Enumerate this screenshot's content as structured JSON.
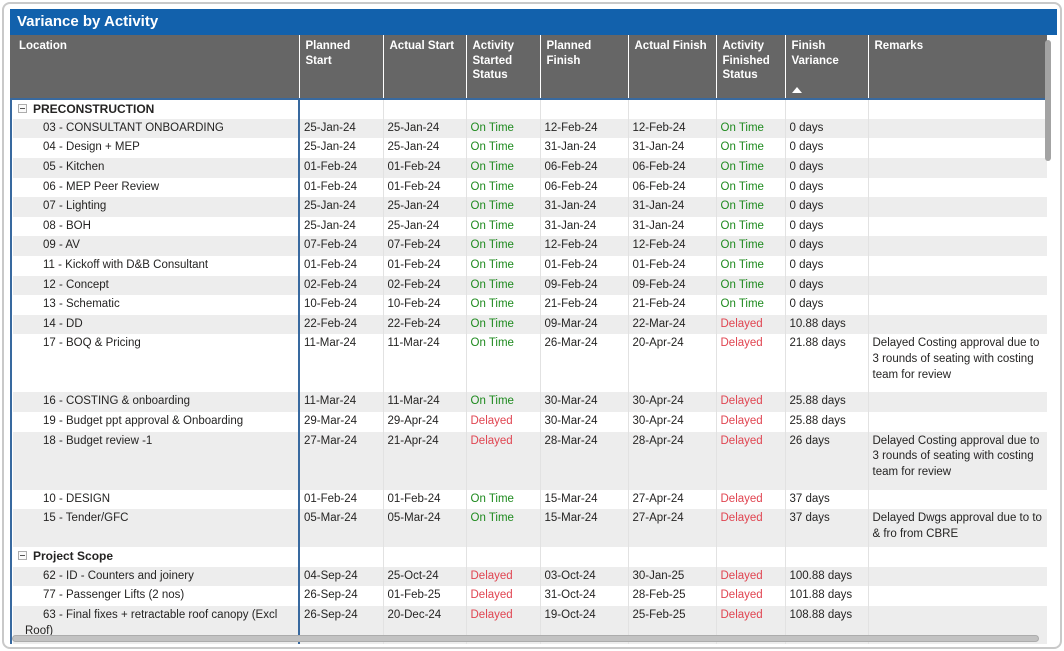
{
  "title": "Variance by Activity",
  "colors": {
    "title_bar": "#1261AC",
    "header_background": "#666666",
    "on_time_green": "#1E8A1E",
    "delayed_red": "#E04450",
    "frozen_divider_blue": "#38699F"
  },
  "table": {
    "columns": [
      {
        "key": "loc",
        "label": "Location"
      },
      {
        "key": "ps",
        "label": "Planned Start"
      },
      {
        "key": "as",
        "label": "Actual Start"
      },
      {
        "key": "ss",
        "label": "Activity Started Status"
      },
      {
        "key": "pf",
        "label": "Planned Finish"
      },
      {
        "key": "af",
        "label": "Actual Finish"
      },
      {
        "key": "fs",
        "label": "Activity Finished Status"
      },
      {
        "key": "fv",
        "label": "Finish Variance",
        "sorted_ascending": true
      },
      {
        "key": "rem",
        "label": "Remarks"
      }
    ],
    "groups": [
      {
        "label": "PRECONSTRUCTION",
        "collapse_icon": "minus-box",
        "rows": [
          {
            "loc": "03 - CONSULTANT ONBOARDING",
            "ps": "25-Jan-24",
            "as": "25-Jan-24",
            "ss": "On Time",
            "pf": "12-Feb-24",
            "af": "12-Feb-24",
            "fs": "On Time",
            "fv": "0 days",
            "rem": ""
          },
          {
            "loc": "04 - Design + MEP",
            "ps": "25-Jan-24",
            "as": "25-Jan-24",
            "ss": "On Time",
            "pf": "31-Jan-24",
            "af": "31-Jan-24",
            "fs": "On Time",
            "fv": "0 days",
            "rem": ""
          },
          {
            "loc": "05 - Kitchen",
            "ps": "01-Feb-24",
            "as": "01-Feb-24",
            "ss": "On Time",
            "pf": "06-Feb-24",
            "af": "06-Feb-24",
            "fs": "On Time",
            "fv": "0 days",
            "rem": ""
          },
          {
            "loc": "06 - MEP Peer Review",
            "ps": "01-Feb-24",
            "as": "01-Feb-24",
            "ss": "On Time",
            "pf": "06-Feb-24",
            "af": "06-Feb-24",
            "fs": "On Time",
            "fv": "0 days",
            "rem": ""
          },
          {
            "loc": "07 - Lighting",
            "ps": "25-Jan-24",
            "as": "25-Jan-24",
            "ss": "On Time",
            "pf": "31-Jan-24",
            "af": "31-Jan-24",
            "fs": "On Time",
            "fv": "0 days",
            "rem": ""
          },
          {
            "loc": "08 - BOH",
            "ps": "25-Jan-24",
            "as": "25-Jan-24",
            "ss": "On Time",
            "pf": "31-Jan-24",
            "af": "31-Jan-24",
            "fs": "On Time",
            "fv": "0 days",
            "rem": ""
          },
          {
            "loc": "09 - AV",
            "ps": "07-Feb-24",
            "as": "07-Feb-24",
            "ss": "On Time",
            "pf": "12-Feb-24",
            "af": "12-Feb-24",
            "fs": "On Time",
            "fv": "0 days",
            "rem": ""
          },
          {
            "loc": "11 - Kickoff with D&B Consultant",
            "ps": "01-Feb-24",
            "as": "01-Feb-24",
            "ss": "On Time",
            "pf": "01-Feb-24",
            "af": "01-Feb-24",
            "fs": "On Time",
            "fv": "0 days",
            "rem": ""
          },
          {
            "loc": "12 - Concept",
            "ps": "02-Feb-24",
            "as": "02-Feb-24",
            "ss": "On Time",
            "pf": "09-Feb-24",
            "af": "09-Feb-24",
            "fs": "On Time",
            "fv": "0 days",
            "rem": ""
          },
          {
            "loc": "13 - Schematic",
            "ps": "10-Feb-24",
            "as": "10-Feb-24",
            "ss": "On Time",
            "pf": "21-Feb-24",
            "af": "21-Feb-24",
            "fs": "On Time",
            "fv": "0 days",
            "rem": ""
          },
          {
            "loc": "14 - DD",
            "ps": "22-Feb-24",
            "as": "22-Feb-24",
            "ss": "On Time",
            "pf": "09-Mar-24",
            "af": "22-Mar-24",
            "fs": "Delayed",
            "fv": "10.88 days",
            "rem": ""
          },
          {
            "loc": "17 - BOQ & Pricing",
            "ps": "11-Mar-24",
            "as": "11-Mar-24",
            "ss": "On Time",
            "pf": "26-Mar-24",
            "af": "20-Apr-24",
            "fs": "Delayed",
            "fv": "21.88 days",
            "rem": "Delayed Costing approval due to 3 rounds of seating with costing team for review"
          },
          {
            "loc": "16 - COSTING & onboarding",
            "ps": "11-Mar-24",
            "as": "11-Mar-24",
            "ss": "On Time",
            "pf": "30-Mar-24",
            "af": "30-Apr-24",
            "fs": "Delayed",
            "fv": "25.88 days",
            "rem": ""
          },
          {
            "loc": "19 - Budget ppt approval & Onboarding",
            "ps": "29-Mar-24",
            "as": "29-Apr-24",
            "ss": "Delayed",
            "pf": "30-Mar-24",
            "af": "30-Apr-24",
            "fs": "Delayed",
            "fv": "25.88 days",
            "rem": ""
          },
          {
            "loc": "18 - Budget review -1",
            "ps": "27-Mar-24",
            "as": "21-Apr-24",
            "ss": "Delayed",
            "pf": "28-Mar-24",
            "af": "28-Apr-24",
            "fs": "Delayed",
            "fv": "26 days",
            "rem": "Delayed Costing approval due to 3 rounds of seating with costing team for review"
          },
          {
            "loc": "10 - DESIGN",
            "ps": "01-Feb-24",
            "as": "01-Feb-24",
            "ss": "On Time",
            "pf": "15-Mar-24",
            "af": "27-Apr-24",
            "fs": "Delayed",
            "fv": "37 days",
            "rem": ""
          },
          {
            "loc": "15 - Tender/GFC",
            "ps": "05-Mar-24",
            "as": "05-Mar-24",
            "ss": "On Time",
            "pf": "15-Mar-24",
            "af": "27-Apr-24",
            "fs": "Delayed",
            "fv": "37 days",
            "rem": "Delayed Dwgs approval due to to & fro from CBRE"
          }
        ]
      },
      {
        "label": "Project Scope",
        "collapse_icon": "minus-box",
        "rows": [
          {
            "loc": "62 - ID - Counters and joinery",
            "ps": "04-Sep-24",
            "as": "25-Oct-24",
            "ss": "Delayed",
            "pf": "03-Oct-24",
            "af": "30-Jan-25",
            "fs": "Delayed",
            "fv": "100.88 days",
            "rem": ""
          },
          {
            "loc": "77 - Passenger Lifts (2 nos)",
            "ps": "26-Sep-24",
            "as": "01-Feb-25",
            "ss": "Delayed",
            "pf": "31-Oct-24",
            "af": "28-Feb-25",
            "fs": "Delayed",
            "fv": "101.88 days",
            "rem": ""
          },
          {
            "loc": "63 - Final fixes + retractable roof canopy (Excl Roof)",
            "ps": "26-Sep-24",
            "as": "20-Dec-24",
            "ss": "Delayed",
            "pf": "19-Oct-24",
            "af": "25-Feb-25",
            "fs": "Delayed",
            "fv": "108.88 days",
            "rem": ""
          }
        ]
      }
    ],
    "status_values": {
      "on_time": "On Time",
      "delayed": "Delayed"
    }
  }
}
